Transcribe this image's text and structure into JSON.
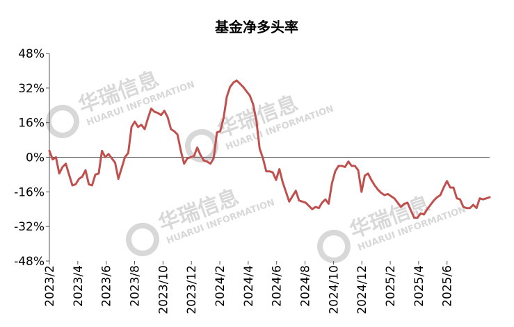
{
  "chart_data": {
    "type": "line",
    "title": "基金净多头率",
    "xlabel": "",
    "ylabel": "",
    "ylim": [
      -48,
      48
    ],
    "y_ticks": [
      "48%",
      "32%",
      "16%",
      "0%",
      "-16%",
      "-32%",
      "-48%"
    ],
    "x_ticks": [
      "2023/2",
      "2023/4",
      "2023/6",
      "2023/8",
      "2023/10",
      "2023/12",
      "2024/2",
      "2024/4",
      "2024/6",
      "2024/8",
      "2024/10",
      "2024/12",
      "2025/2",
      "2025/4",
      "2025/6"
    ],
    "grid": false,
    "legend": "none",
    "series": [
      {
        "color": "#c0504d",
        "values": [
          3,
          -1,
          0,
          -7.5,
          -4.5,
          -3,
          -8,
          -13,
          -12.5,
          -10,
          -9,
          -6,
          -12.5,
          -13,
          -8,
          -7.5,
          3,
          0,
          1.5,
          -0.5,
          -2.5,
          -10,
          -5,
          0,
          2,
          14,
          16.5,
          14,
          15,
          13,
          18,
          22.5,
          21,
          20.5,
          19.5,
          21.5,
          18.5,
          13,
          12,
          10.5,
          3,
          -3,
          -0.5,
          0,
          0.5,
          4.5,
          1,
          -1.5,
          -2,
          -3,
          -0.5,
          11.5,
          12,
          18,
          28,
          32.5,
          34.5,
          35.5,
          34,
          32.5,
          30.5,
          28.5,
          24.5,
          17,
          4,
          -0.5,
          -6.5,
          -6.5,
          -7,
          -10.5,
          -5.5,
          -11.5,
          -16,
          -20.5,
          -18,
          -15.5,
          -20,
          -20.5,
          -21,
          -22.5,
          -24,
          -23,
          -23.5,
          -21,
          -19.5,
          -21.5,
          -12,
          -6.5,
          -4,
          -4,
          -4.5,
          -2,
          -4,
          -4,
          -6,
          -16,
          -8.5,
          -7.5,
          -10.5,
          -13,
          -15,
          -16.5,
          -17.5,
          -17,
          -18,
          -19,
          -21,
          -23,
          -21.5,
          -21,
          -24.5,
          -28,
          -28,
          -26,
          -26.5,
          -24,
          -22,
          -20,
          -18.5,
          -17.5,
          -14,
          -11,
          -14,
          -14,
          -19,
          -19.5,
          -23,
          -23.5,
          -23.5,
          -22,
          -23.5,
          -19,
          -19.5,
          -19,
          -18.5
        ]
      }
    ]
  },
  "watermark": {
    "brand_cn": "华瑞信息",
    "brand_en": "HUARUI INFORMATION"
  },
  "colors": {
    "line": "#c0504d",
    "axis": "#555555",
    "watermark": "#d8d8d8"
  }
}
